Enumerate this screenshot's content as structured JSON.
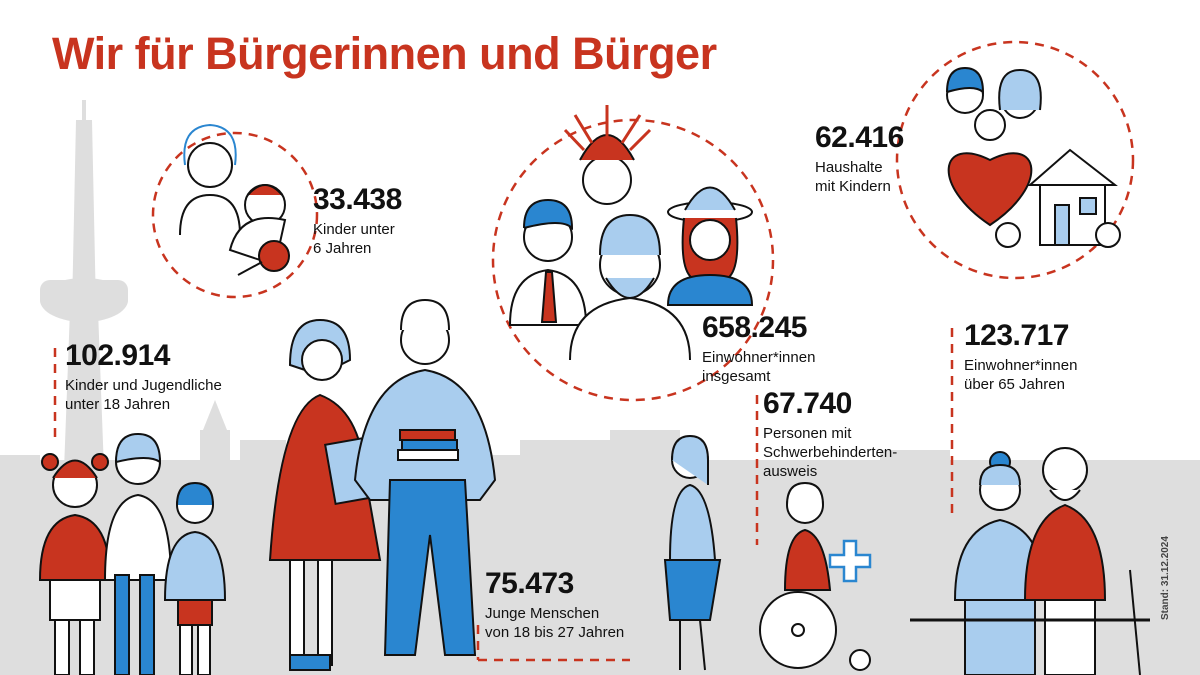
{
  "title": "Wir für Bürgerinnen und Bürger",
  "colors": {
    "accent": "#c8341f",
    "blue": "#2a86d0",
    "light_blue": "#a9cdee",
    "skyline_gray": "#dcdcdc"
  },
  "stats": [
    {
      "id": "kinder-unter-6",
      "number": "33.438",
      "label": "Kinder unter\n6 Jahren"
    },
    {
      "id": "einwohner-gesamt",
      "number": "658.245",
      "label": "Einwohner*innen\ninsgesamt"
    },
    {
      "id": "haushalte-kinder",
      "number": "62.416",
      "label": "Haushalte\nmit Kindern"
    },
    {
      "id": "kinder-jugendliche",
      "number": "102.914",
      "label": "Kinder und Jugendliche\nunter 18 Jahren"
    },
    {
      "id": "einwohner-ueber-65",
      "number": "123.717",
      "label": "Einwohner*innen\nüber 65 Jahren"
    },
    {
      "id": "schwerbehindert",
      "number": "67.740",
      "label": "Personen mit\nSchwerbehinderten-\nausweis"
    },
    {
      "id": "junge-menschen",
      "number": "75.473",
      "label": "Junge Menschen\nvon 18 bis 27 Jahren"
    }
  ],
  "footnote": "Stand: 31.12.2024"
}
